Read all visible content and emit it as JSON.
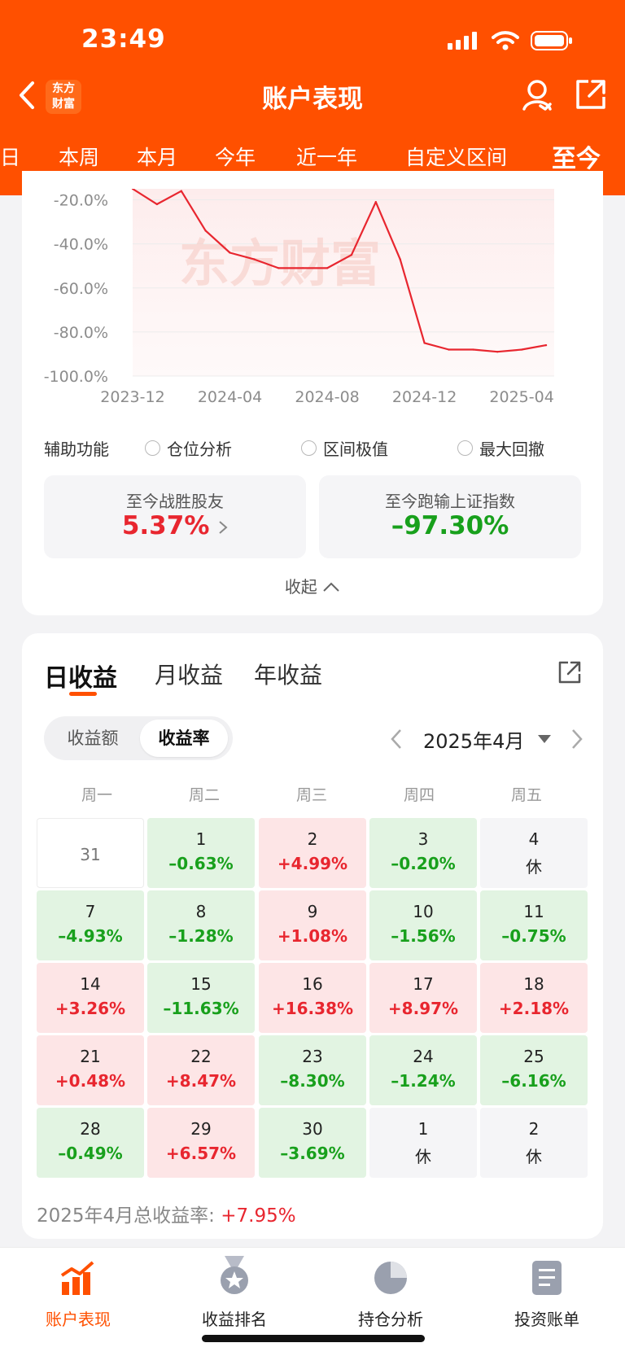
{
  "status_bar": {
    "time": "23:49"
  },
  "header": {
    "title": "账户表现",
    "logo_text": "东方\n财富",
    "tabs": [
      {
        "label": "日",
        "active": false
      },
      {
        "label": "本周",
        "active": false
      },
      {
        "label": "本月",
        "active": false
      },
      {
        "label": "今年",
        "active": false
      },
      {
        "label": "近一年",
        "active": false
      },
      {
        "label": "自定义区间",
        "active": false
      },
      {
        "label": "至今",
        "active": true
      }
    ]
  },
  "chart_data": {
    "type": "line",
    "watermark": "东方财富",
    "x_tick_labels": [
      "2023-12",
      "2024-04",
      "2024-08",
      "2024-12",
      "2025-04"
    ],
    "y_tick_labels": [
      "-20.0%",
      "-40.0%",
      "-60.0%",
      "-80.0%",
      "-100.0%"
    ],
    "ylim": [
      -100,
      -15
    ],
    "line_color": "#e8262f",
    "series": [
      {
        "x": [
          "2023-12",
          "2024-01",
          "2024-02",
          "2024-03",
          "2024-04",
          "2024-05",
          "2024-06",
          "2024-07",
          "2024-08",
          "2024-09",
          "2024-10",
          "2024-11",
          "2024-12",
          "2025-01",
          "2025-02",
          "2025-03",
          "2025-04",
          "2025-05"
        ],
        "values": [
          -15,
          -22,
          -16,
          -34,
          -44,
          -47,
          -51,
          -51,
          -51,
          -45,
          -21,
          -47,
          -85,
          -88,
          -88,
          -89,
          -88,
          -86
        ]
      }
    ]
  },
  "aux": {
    "label": "辅助功能",
    "options": [
      "仓位分析",
      "区间极值",
      "最大回撤"
    ]
  },
  "stats": {
    "beat": {
      "label": "至今战胜股友",
      "value": "5.37%"
    },
    "vs_index": {
      "label": "至今跑输上证指数",
      "value": "–97.30%"
    }
  },
  "collapse_label": "收起",
  "returns": {
    "tabs": [
      "日收益",
      "月收益",
      "年收益"
    ],
    "toggle": {
      "options": [
        "收益额",
        "收益率"
      ],
      "selected": "收益率"
    },
    "month": "2025年4月",
    "weekdays": [
      "周一",
      "周二",
      "周三",
      "周四",
      "周五"
    ],
    "rows": [
      [
        {
          "day": "31",
          "value": "",
          "tone": "w"
        },
        {
          "day": "1",
          "value": "–0.63%",
          "tone": "g"
        },
        {
          "day": "2",
          "value": "+4.99%",
          "tone": "r"
        },
        {
          "day": "3",
          "value": "–0.20%",
          "tone": "g"
        },
        {
          "day": "4",
          "value": "休",
          "tone": "n"
        }
      ],
      [
        {
          "day": "7",
          "value": "–4.93%",
          "tone": "g"
        },
        {
          "day": "8",
          "value": "–1.28%",
          "tone": "g"
        },
        {
          "day": "9",
          "value": "+1.08%",
          "tone": "r"
        },
        {
          "day": "10",
          "value": "–1.56%",
          "tone": "g"
        },
        {
          "day": "11",
          "value": "–0.75%",
          "tone": "g"
        }
      ],
      [
        {
          "day": "14",
          "value": "+3.26%",
          "tone": "r"
        },
        {
          "day": "15",
          "value": "–11.63%",
          "tone": "g"
        },
        {
          "day": "16",
          "value": "+16.38%",
          "tone": "r"
        },
        {
          "day": "17",
          "value": "+8.97%",
          "tone": "r"
        },
        {
          "day": "18",
          "value": "+2.18%",
          "tone": "r"
        }
      ],
      [
        {
          "day": "21",
          "value": "+0.48%",
          "tone": "r"
        },
        {
          "day": "22",
          "value": "+8.47%",
          "tone": "r"
        },
        {
          "day": "23",
          "value": "–8.30%",
          "tone": "g"
        },
        {
          "day": "24",
          "value": "–1.24%",
          "tone": "g"
        },
        {
          "day": "25",
          "value": "–6.16%",
          "tone": "g"
        }
      ],
      [
        {
          "day": "28",
          "value": "–0.49%",
          "tone": "g"
        },
        {
          "day": "29",
          "value": "+6.57%",
          "tone": "r"
        },
        {
          "day": "30",
          "value": "–3.69%",
          "tone": "g"
        },
        {
          "day": "1",
          "value": "休",
          "tone": "n"
        },
        {
          "day": "2",
          "value": "休",
          "tone": "n"
        }
      ]
    ],
    "total_label": "2025年4月总收益率:",
    "total_value": "+7.95%"
  },
  "bottom_nav": [
    {
      "label": "账户表现",
      "icon": "trend-chart-icon",
      "active": true
    },
    {
      "label": "收益排名",
      "icon": "medal-icon",
      "active": false
    },
    {
      "label": "持仓分析",
      "icon": "pie-chart-icon",
      "active": false
    },
    {
      "label": "投资账单",
      "icon": "bill-icon",
      "active": false
    }
  ],
  "colors": {
    "brand": "#ff5000",
    "up": "#e8262f",
    "down": "#18a01c"
  }
}
